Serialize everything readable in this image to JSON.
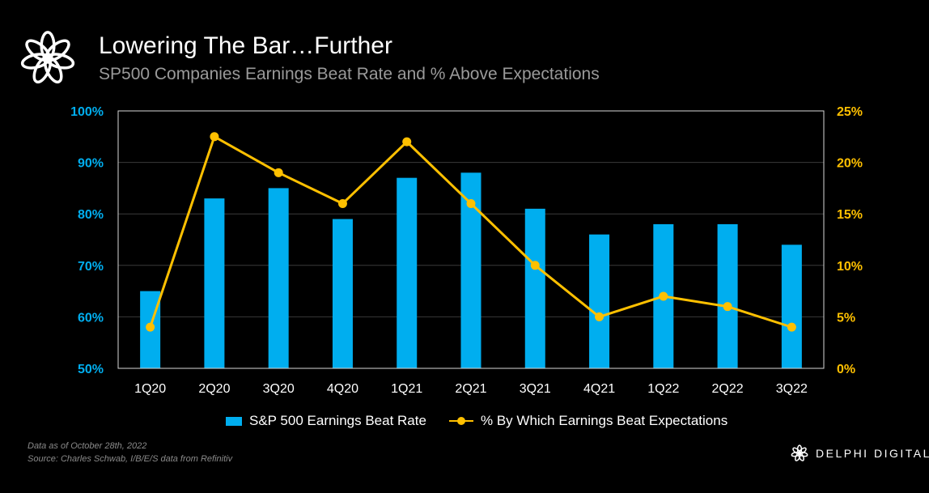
{
  "header": {
    "title": "Lowering The Bar…Further",
    "subtitle": "SP500 Companies Earnings Beat Rate and % Above Expectations"
  },
  "footer": {
    "note_line1": "Data as of October 28th, 2022",
    "note_line2": "Source: Charles Schwab, I/B/E/S data from Refinitiv",
    "brand": "DELPHI DIGITAL"
  },
  "icons": {
    "logo": "delphi-flower-logo-icon"
  },
  "colors": {
    "background": "#000000",
    "bar": "#00aeef",
    "line": "#ffc000",
    "left_axis_text": "#00aeef",
    "right_axis_text": "#ffc000",
    "grid": "#3a3a3a"
  },
  "chart_data": {
    "type": "bar",
    "categories": [
      "1Q20",
      "2Q20",
      "3Q20",
      "4Q20",
      "1Q21",
      "2Q21",
      "3Q21",
      "4Q21",
      "1Q22",
      "2Q22",
      "3Q22"
    ],
    "series": [
      {
        "name": "S&P 500 Earnings Beat Rate",
        "type": "bar",
        "axis": "left",
        "values": [
          65,
          83,
          85,
          79,
          87,
          88,
          81,
          76,
          78,
          78,
          74
        ]
      },
      {
        "name": "% By Which Earnings Beat Expectations",
        "type": "line",
        "axis": "right",
        "values": [
          4,
          22.5,
          19,
          16,
          22,
          16,
          10,
          5,
          7,
          6,
          4
        ]
      }
    ],
    "y_left": {
      "range": [
        50,
        100
      ],
      "ticks": [
        50,
        60,
        70,
        80,
        90,
        100
      ],
      "tick_labels": [
        "50%",
        "60%",
        "70%",
        "80%",
        "90%",
        "100%"
      ]
    },
    "y_right": {
      "range": [
        0,
        25
      ],
      "ticks": [
        0,
        5,
        10,
        15,
        20,
        25
      ],
      "tick_labels": [
        "0%",
        "5%",
        "10%",
        "15%",
        "20%",
        "25%"
      ]
    },
    "grid": true,
    "legend_position": "bottom"
  }
}
